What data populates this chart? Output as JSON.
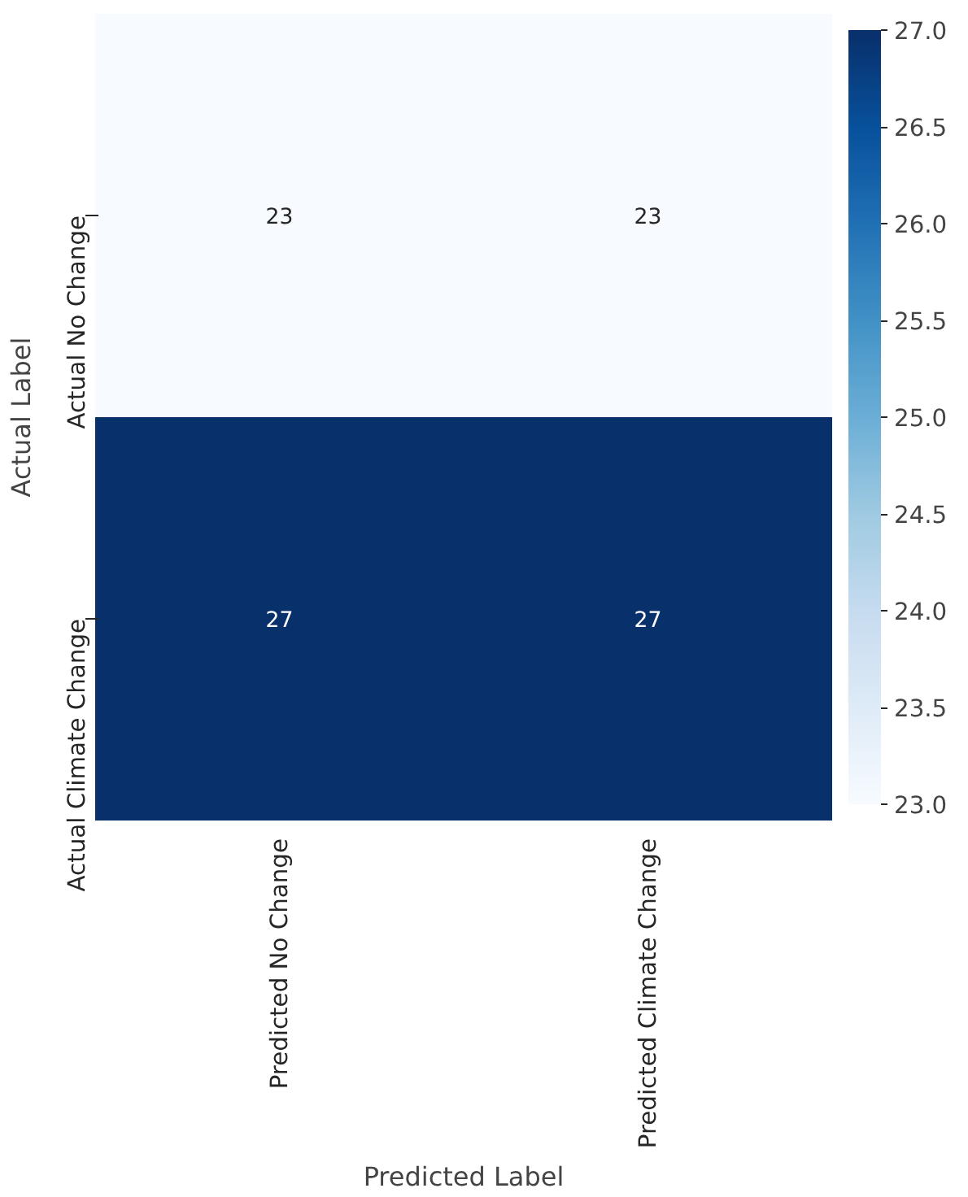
{
  "chart_data": {
    "type": "heatmap",
    "xlabel": "Predicted Label",
    "ylabel": "Actual Label",
    "categories": [
      "Predicted No Change",
      "Predicted Climate Change"
    ],
    "y_categories": [
      "Actual No Change",
      "Actual Climate Change"
    ],
    "cells": [
      [
        23,
        23
      ],
      [
        27,
        27
      ]
    ],
    "clim": [
      23.0,
      27.0
    ],
    "cticks": [
      {
        "value": 23,
        "label": "23.0"
      },
      {
        "value": 23.5,
        "label": "23.5"
      },
      {
        "value": 24,
        "label": "24.0"
      },
      {
        "value": 24.5,
        "label": "24.5"
      },
      {
        "value": 25,
        "label": "25.0"
      },
      {
        "value": 25.5,
        "label": "25.5"
      },
      {
        "value": 26,
        "label": "26.0"
      },
      {
        "value": 26.5,
        "label": "26.5"
      },
      {
        "value": 27,
        "label": "27.0"
      }
    ],
    "data_labels": true
  }
}
